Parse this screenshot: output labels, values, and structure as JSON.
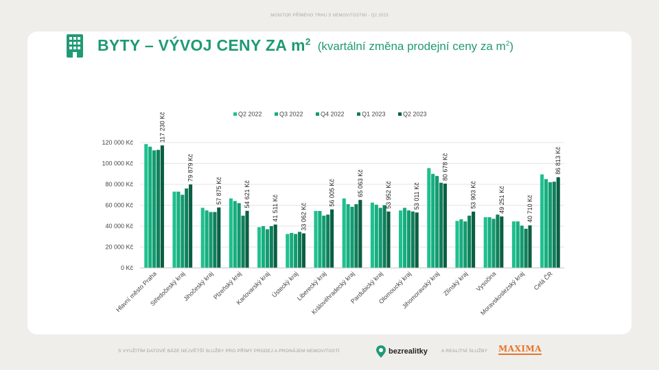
{
  "page": {
    "top_caption": "MONITOR PŘÍMÉHO TRHU S NEMOVITOSTMI - Q2 2023",
    "title_main": "BYTY – VÝVOJ CENY ZA m",
    "title_main_sup": "2",
    "title_sub": "(kvartální změna prodejní ceny za m",
    "title_sub_sup": "2",
    "title_sub_end": ")",
    "footer_text": "S VYUŽITÍM DATOVÉ BÁZE NEJVĚTŠÍ SLUŽBY PRO PŘÍMÝ PRODEJ A PRONÁJEM NEMOVITOSTÍ",
    "brand": "bezrealitky",
    "footer_mid": "A REALITNÍ SLUŽBY",
    "maxima": "MAXIMA"
  },
  "colors": {
    "accent": "#1f9a74",
    "series": [
      "#1fc08e",
      "#18ae7f",
      "#149a6f",
      "#0f805b",
      "#0a5f43"
    ]
  },
  "chart_data": {
    "type": "bar",
    "title": "BYTY – VÝVOJ CENY ZA m2",
    "xlabel": "",
    "ylabel": "",
    "ylim": [
      0,
      120000
    ],
    "yticks": [
      0,
      20000,
      40000,
      60000,
      80000,
      100000,
      120000
    ],
    "ytick_labels": [
      "0 Kč",
      "20 000 Kč",
      "40 000 Kč",
      "60 000 Kč",
      "80 000 Kč",
      "100 000 Kč",
      "120 000 Kč"
    ],
    "legend_position": "top",
    "categories": [
      "Hlavní město Praha",
      "Středočeský kraj",
      "Jihočeský kraj",
      "Plzeňský kraj",
      "Karlovarský kraj",
      "Ústecký kraj",
      "Liberecký kraj",
      "Královéhradecký kraj",
      "Pardubický kraj",
      "Olomoucký kraj",
      "Jihomoravský kraj",
      "Zlínský kraj",
      "Vysočina",
      "Moravskoslezský kraj",
      "Celá ČR"
    ],
    "series": [
      {
        "name": "Q2 2022",
        "values": [
          118500,
          73000,
          57500,
          66500,
          39000,
          32500,
          54500,
          66500,
          62500,
          55000,
          95500,
          45000,
          48500,
          44500,
          89500
        ]
      },
      {
        "name": "Q3 2022",
        "values": [
          116000,
          73000,
          55000,
          64000,
          40000,
          33500,
          54500,
          61000,
          60500,
          57500,
          90000,
          46500,
          48500,
          44500,
          85000
        ]
      },
      {
        "name": "Q4 2022",
        "values": [
          112500,
          70000,
          53500,
          62000,
          37000,
          32500,
          50000,
          58500,
          57500,
          55000,
          88000,
          44500,
          47000,
          40500,
          82000
        ]
      },
      {
        "name": "Q1 2023",
        "values": [
          113000,
          76000,
          53500,
          50000,
          40000,
          34500,
          51000,
          61000,
          60000,
          54000,
          81500,
          50000,
          51000,
          37500,
          82500
        ]
      },
      {
        "name": "Q2 2023",
        "values": [
          117230,
          79879,
          57875,
          54621,
          41511,
          33062,
          56005,
          65063,
          53952,
          53011,
          80678,
          53903,
          49251,
          40710,
          86813
        ]
      }
    ],
    "data_labels": [
      "117 230 Kč",
      "79 879 Kč",
      "57 875 Kč",
      "54 621 Kč",
      "41 511 Kč",
      "33 062 Kč",
      "56 005 Kč",
      "65 063 Kč",
      "53 952 Kč",
      "53 011 Kč",
      "80 678 Kč",
      "53 903 Kč",
      "49 251 Kč",
      "40 710 Kč",
      "86 813 Kč"
    ]
  }
}
